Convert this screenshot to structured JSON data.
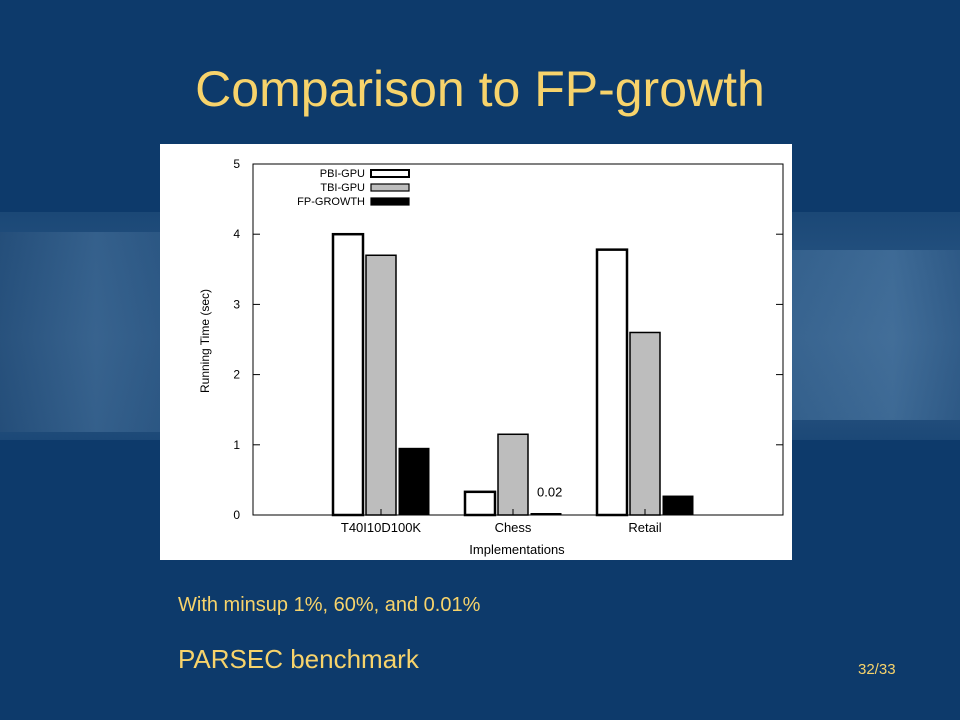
{
  "slide": {
    "title": "Comparison to FP-growth",
    "note": "With minsup 1%, 60%, and 0.01%",
    "subtitle": "PARSEC benchmark",
    "page_number": "32/33"
  },
  "colors": {
    "background": "#0d3a6b",
    "title_text": "#f7d36b",
    "pbi_fill": "#ffffff",
    "tbi_fill": "#bdbdbd",
    "fp_fill": "#000000"
  },
  "chart_data": {
    "type": "bar",
    "title": "",
    "xlabel": "Implementations",
    "ylabel": "Running Time (sec)",
    "ylim": [
      0,
      5
    ],
    "yticks": [
      "0",
      "1",
      "2",
      "3",
      "4",
      "5"
    ],
    "categories": [
      "T40I10D100K",
      "Chess",
      "Retail"
    ],
    "series": [
      {
        "name": "PBI-GPU",
        "values": [
          4.0,
          0.33,
          3.78
        ]
      },
      {
        "name": "TBI-GPU",
        "values": [
          3.7,
          1.15,
          2.6
        ]
      },
      {
        "name": "FP-GROWTH",
        "values": [
          0.95,
          0.02,
          0.27
        ]
      }
    ],
    "annotations": [
      {
        "text": "0.02",
        "category": "Chess",
        "series": "FP-GROWTH"
      }
    ],
    "legend_position": "top-left",
    "grid": false
  }
}
